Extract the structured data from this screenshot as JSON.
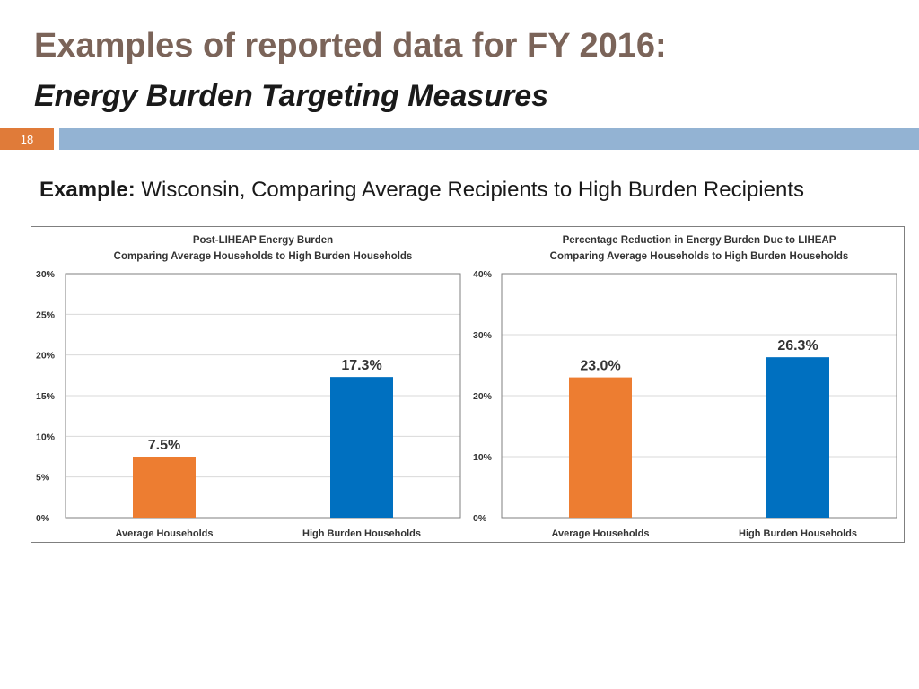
{
  "header": {
    "title_line1": "Examples of reported data for FY 2016:",
    "title_line2": "Energy Burden Targeting Measures",
    "slide_number": "18"
  },
  "subtitle": {
    "label": "Example:",
    "text": "Wisconsin, Comparing Average Recipients to High Burden Recipients"
  },
  "colors": {
    "title": "#7b6459",
    "accent_orange": "#ed7d31",
    "accent_blue": "#0070c0",
    "header_bar": "#93b3d3"
  },
  "chart_data": [
    {
      "type": "bar",
      "title": "Post-LIHEAP Energy Burden",
      "subtitle": "Comparing Average Households to High Burden Households",
      "categories": [
        "Average Households",
        "High Burden Households"
      ],
      "values": [
        7.5,
        17.3
      ],
      "value_labels": [
        "7.5%",
        "17.3%"
      ],
      "bar_colors": [
        "#ed7d31",
        "#0070c0"
      ],
      "ylim": [
        0,
        30
      ],
      "yticks": [
        0,
        5,
        10,
        15,
        20,
        25,
        30
      ],
      "ytick_labels": [
        "0%",
        "5%",
        "10%",
        "15%",
        "20%",
        "25%",
        "30%"
      ],
      "xlabel": "",
      "ylabel": "",
      "grid": true
    },
    {
      "type": "bar",
      "title": "Percentage Reduction in Energy Burden Due to LIHEAP",
      "subtitle": "Comparing Average Households to High Burden Households",
      "categories": [
        "Average Households",
        "High Burden Households"
      ],
      "values": [
        23.0,
        26.3
      ],
      "value_labels": [
        "23.0%",
        "26.3%"
      ],
      "bar_colors": [
        "#ed7d31",
        "#0070c0"
      ],
      "ylim": [
        0,
        40
      ],
      "yticks": [
        0,
        10,
        20,
        30,
        40
      ],
      "ytick_labels": [
        "0%",
        "10%",
        "20%",
        "30%",
        "40%"
      ],
      "xlabel": "",
      "ylabel": "",
      "grid": true
    }
  ]
}
